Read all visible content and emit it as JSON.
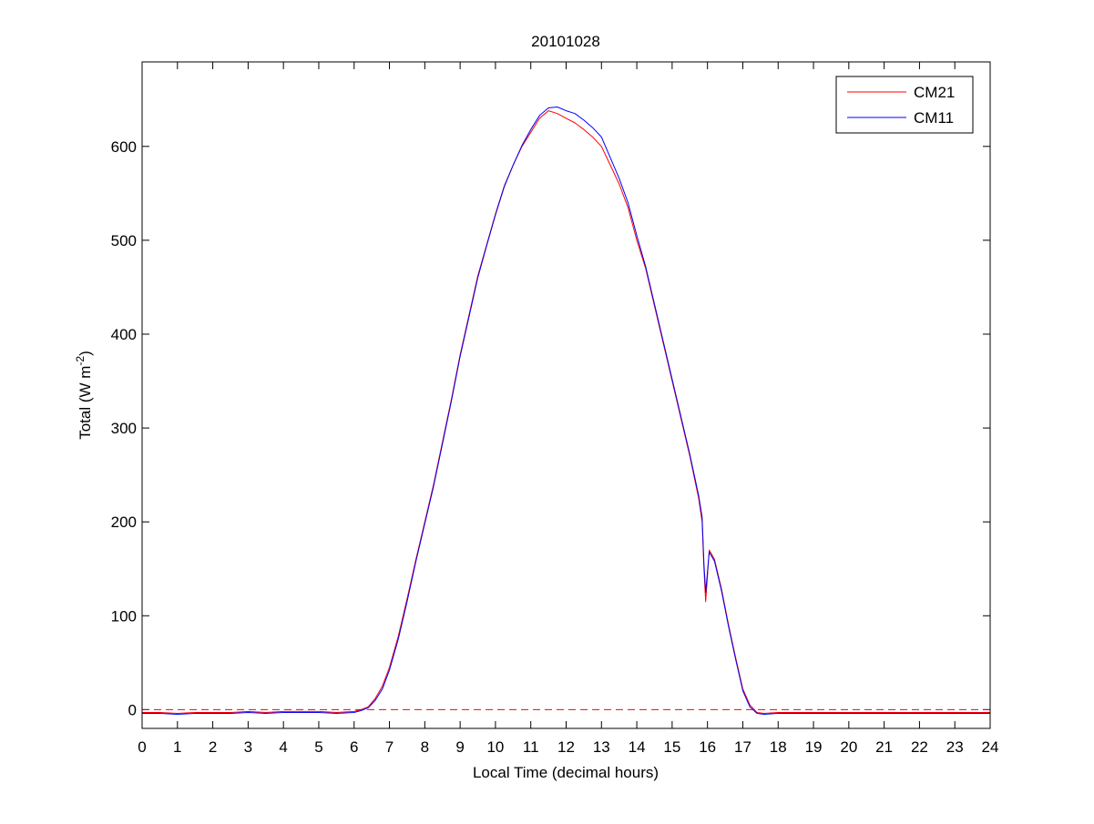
{
  "chart_data": {
    "type": "line",
    "title": "20101028",
    "xlabel": "Local Time (decimal hours)",
    "ylabel_main": "Total (W m",
    "ylabel_sup": "-2",
    "ylabel_close": ")",
    "xlim": [
      0,
      24
    ],
    "ylim": [
      -20,
      690
    ],
    "xticks": [
      0,
      1,
      2,
      3,
      4,
      5,
      6,
      7,
      8,
      9,
      10,
      11,
      12,
      13,
      14,
      15,
      16,
      17,
      18,
      19,
      20,
      21,
      22,
      23,
      24
    ],
    "yticks": [
      0,
      100,
      200,
      300,
      400,
      500,
      600
    ],
    "grid": false,
    "legend_position": "top-right",
    "reference_line": {
      "y": 0,
      "style": "dashed",
      "color": "#ff0000"
    },
    "series": [
      {
        "name": "CM21",
        "color": "#ff0000",
        "x": [
          0,
          0.5,
          1,
          1.5,
          2,
          2.5,
          3,
          3.5,
          4,
          4.5,
          5,
          5.5,
          6,
          6.2,
          6.4,
          6.6,
          6.8,
          7,
          7.25,
          7.5,
          7.75,
          8,
          8.25,
          8.5,
          8.75,
          9,
          9.25,
          9.5,
          9.75,
          10,
          10.25,
          10.5,
          10.75,
          11,
          11.25,
          11.5,
          11.75,
          12,
          12.25,
          12.5,
          12.75,
          13,
          13.25,
          13.5,
          13.75,
          14,
          14.25,
          14.5,
          14.75,
          15,
          15.25,
          15.5,
          15.75,
          15.85,
          15.9,
          15.95,
          16.05,
          16.2,
          16.4,
          16.6,
          16.8,
          17,
          17.2,
          17.4,
          17.6,
          18,
          19,
          20,
          21,
          22,
          23,
          24
        ],
        "y": [
          -3,
          -3,
          -4,
          -3,
          -3,
          -3,
          -2,
          -3,
          -2,
          -2,
          -2,
          -3,
          -2,
          0,
          3,
          12,
          25,
          45,
          78,
          118,
          160,
          200,
          240,
          285,
          330,
          378,
          420,
          462,
          495,
          528,
          558,
          580,
          600,
          615,
          630,
          638,
          635,
          630,
          625,
          618,
          610,
          600,
          580,
          560,
          535,
          500,
          470,
          430,
          390,
          350,
          310,
          270,
          225,
          200,
          150,
          115,
          170,
          160,
          128,
          90,
          55,
          22,
          5,
          -3,
          -4,
          -3,
          -3,
          -3,
          -3,
          -3,
          -3,
          -3
        ]
      },
      {
        "name": "CM11",
        "color": "#0000ff",
        "x": [
          0,
          0.5,
          1,
          1.5,
          2,
          2.5,
          3,
          3.5,
          4,
          4.5,
          5,
          5.5,
          6,
          6.2,
          6.4,
          6.6,
          6.8,
          7,
          7.25,
          7.5,
          7.75,
          8,
          8.25,
          8.5,
          8.75,
          9,
          9.25,
          9.5,
          9.75,
          10,
          10.25,
          10.5,
          10.75,
          11,
          11.25,
          11.5,
          11.75,
          12,
          12.25,
          12.5,
          12.75,
          13,
          13.25,
          13.5,
          13.75,
          14,
          14.25,
          14.5,
          14.75,
          15,
          15.25,
          15.5,
          15.75,
          15.85,
          15.9,
          15.95,
          16.05,
          16.2,
          16.4,
          16.6,
          16.8,
          17,
          17.2,
          17.4,
          17.6,
          18,
          19,
          20,
          21,
          22,
          23,
          24
        ],
        "y": [
          -4,
          -4,
          -5,
          -4,
          -4,
          -4,
          -3,
          -4,
          -3,
          -3,
          -3,
          -4,
          -3,
          -1,
          2,
          10,
          22,
          42,
          75,
          115,
          158,
          198,
          238,
          283,
          328,
          376,
          418,
          460,
          494,
          527,
          557,
          580,
          601,
          618,
          633,
          641,
          642,
          638,
          635,
          628,
          620,
          610,
          588,
          566,
          540,
          505,
          472,
          432,
          392,
          352,
          312,
          272,
          228,
          205,
          155,
          125,
          168,
          158,
          126,
          88,
          53,
          20,
          3,
          -4,
          -5,
          -4,
          -4,
          -4,
          -4,
          -4,
          -4,
          -4
        ]
      }
    ]
  }
}
